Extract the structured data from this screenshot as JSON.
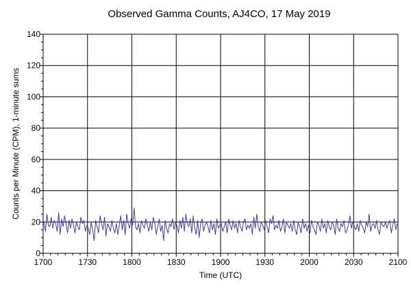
{
  "chart_data": {
    "type": "line",
    "title": "Observed Gamma Counts, AJ4CO, 17 May 2019",
    "xlabel": "Time (UTC)",
    "ylabel": "Counts per Minute (CPM), 1-minute sums",
    "ylim": [
      0,
      140
    ],
    "yticks": [
      "0",
      "20",
      "40",
      "60",
      "80",
      "100",
      "120",
      "140"
    ],
    "xlim": [
      "17:00",
      "21:00"
    ],
    "xticks": [
      "1700",
      "1730",
      "1800",
      "1830",
      "1900",
      "1930",
      "2000",
      "2030",
      "2100"
    ],
    "grid": true,
    "series": [
      {
        "color": "#3a3a9a",
        "x_start": "17:00",
        "x_step_minutes": 1,
        "values": [
          20,
          14,
          25,
          18,
          17,
          23,
          16,
          21,
          19,
          14,
          26,
          12,
          22,
          17,
          24,
          19,
          13,
          21,
          16,
          22,
          18,
          13,
          20,
          17,
          15,
          23,
          19,
          21,
          14,
          18,
          16,
          12,
          20,
          15,
          8,
          21,
          17,
          13,
          24,
          19,
          15,
          23,
          11,
          19,
          17,
          14,
          21,
          16,
          13,
          19,
          12,
          18,
          24,
          15,
          21,
          12,
          25,
          19,
          16,
          22,
          18,
          29,
          17,
          15,
          19,
          13,
          21,
          18,
          16,
          22,
          18,
          14,
          20,
          15,
          23,
          19,
          12,
          17,
          22,
          14,
          18,
          8,
          21,
          16,
          13,
          19,
          17,
          22,
          15,
          20,
          18,
          13,
          21,
          16,
          23,
          14,
          25,
          19,
          17,
          22,
          13,
          24,
          16,
          12,
          21,
          10,
          19,
          22,
          14,
          18,
          20,
          17,
          13,
          21,
          15,
          19,
          12,
          22,
          16,
          18,
          19,
          14,
          17,
          20,
          13,
          22,
          18,
          15,
          21,
          16,
          19,
          13,
          21,
          17,
          14,
          20,
          22,
          15,
          18,
          16,
          19,
          12,
          23,
          16,
          25,
          17,
          14,
          20,
          18,
          15,
          21,
          17,
          13,
          22,
          19,
          24,
          15,
          18,
          16,
          21,
          14,
          17,
          22,
          13,
          20,
          18,
          16,
          19,
          14,
          21,
          15,
          12,
          20,
          17,
          13,
          22,
          16,
          19,
          14,
          18,
          13,
          21,
          17,
          15,
          12,
          20,
          18,
          14,
          22,
          16,
          19,
          13,
          21,
          17,
          15,
          20,
          18,
          12,
          22,
          16,
          14,
          19,
          17,
          21,
          13,
          15,
          18,
          24,
          16,
          20,
          17,
          15,
          19,
          14,
          21,
          18,
          16,
          13,
          20,
          17,
          25,
          14,
          18,
          19,
          16,
          21,
          15,
          12,
          20,
          18,
          17,
          20,
          16,
          19,
          21,
          13,
          18,
          22,
          15,
          19
        ]
      }
    ]
  }
}
